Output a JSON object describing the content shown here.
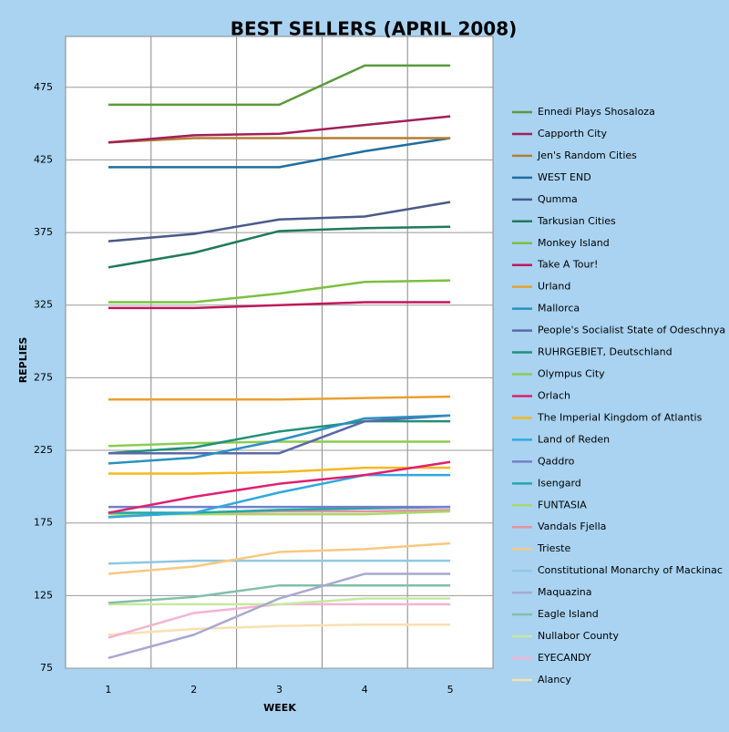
{
  "chart_data": {
    "type": "line",
    "title": "BEST SELLERS (APRIL 2008)",
    "x_label": "WEEK",
    "y_label": "REPLIES",
    "categories": [
      "1",
      "2",
      "3",
      "4",
      "5"
    ],
    "ylim": [
      75,
      510
    ],
    "yticks": [
      75,
      125,
      175,
      225,
      275,
      325,
      375,
      425,
      475
    ],
    "grid": true,
    "series": [
      {
        "name": "Ennedi Plays Shosaloza",
        "color": "#5a9a3a",
        "values": [
          463,
          463,
          463,
          490,
          490
        ]
      },
      {
        "name": "Capporth City",
        "color": "#a0205a",
        "values": [
          437,
          442,
          443,
          449,
          455
        ]
      },
      {
        "name": "Jen's Random Cities",
        "color": "#b57d32",
        "values": [
          437,
          440,
          440,
          440,
          440
        ]
      },
      {
        "name": "WEST END",
        "color": "#1f6e9e",
        "values": [
          420,
          420,
          420,
          431,
          440
        ]
      },
      {
        "name": "Qumma",
        "color": "#4a5a8a",
        "values": [
          369,
          374,
          384,
          386,
          396
        ]
      },
      {
        "name": "Tarkusian Cities",
        "color": "#1f7a5a",
        "values": [
          351,
          361,
          376,
          378,
          379
        ]
      },
      {
        "name": "Monkey Island",
        "color": "#7ac040",
        "values": [
          327,
          327,
          333,
          341,
          342
        ]
      },
      {
        "name": "Take A Tour!",
        "color": "#c0185a",
        "values": [
          323,
          323,
          325,
          327,
          327
        ]
      },
      {
        "name": "Urland",
        "color": "#e8a030",
        "values": [
          260,
          260,
          260,
          261,
          262
        ]
      },
      {
        "name": "Mallorca",
        "color": "#2a90c0",
        "values": [
          216,
          220,
          232,
          247,
          249
        ]
      },
      {
        "name": "People's Socialist State of Odeschnya",
        "color": "#5a68a8",
        "values": [
          223,
          223,
          223,
          245,
          249
        ]
      },
      {
        "name": "RUHRGEBIET, Deutschland",
        "color": "#20907a",
        "values": [
          223,
          227,
          238,
          245,
          245
        ]
      },
      {
        "name": "Olympus City",
        "color": "#8ccc50",
        "values": [
          228,
          230,
          231,
          231,
          231
        ]
      },
      {
        "name": "Orlach",
        "color": "#e0206e",
        "values": [
          182,
          193,
          202,
          208,
          217
        ]
      },
      {
        "name": "The Imperial Kingdom of Atlantis",
        "color": "#f5b820",
        "values": [
          209,
          209,
          210,
          213,
          213
        ]
      },
      {
        "name": "Land of Reden",
        "color": "#30a8e0",
        "values": [
          179,
          182,
          196,
          208,
          208
        ]
      },
      {
        "name": "Qaddro",
        "color": "#7080c8",
        "values": [
          186,
          186,
          186,
          186,
          186
        ]
      },
      {
        "name": "Isengard",
        "color": "#20a8a8",
        "values": [
          182,
          182,
          184,
          185,
          186
        ]
      },
      {
        "name": "FUNTASIA",
        "color": "#a8d868",
        "values": [
          181,
          181,
          181,
          181,
          183
        ]
      },
      {
        "name": "Vandals Fjella",
        "color": "#e890a0",
        "values": [
          179,
          182,
          183,
          183,
          184
        ]
      },
      {
        "name": "Trieste",
        "color": "#f8c880",
        "values": [
          140,
          145,
          155,
          157,
          161
        ]
      },
      {
        "name": "Constitutional Monarchy of Mackinac",
        "color": "#90c8e0",
        "values": [
          147,
          149,
          149,
          149,
          149
        ]
      },
      {
        "name": "Maquazina",
        "color": "#a8a8d0",
        "values": [
          82,
          98,
          123,
          140,
          140
        ]
      },
      {
        "name": "Eagle Island",
        "color": "#80c0a8",
        "values": [
          120,
          124,
          132,
          132,
          132
        ]
      },
      {
        "name": "Nullabor County",
        "color": "#c8e8a0",
        "values": [
          119,
          119,
          119,
          123,
          123
        ]
      },
      {
        "name": "EYECANDY",
        "color": "#f4b4d4",
        "values": [
          96,
          113,
          119,
          119,
          119
        ]
      },
      {
        "name": "Alancy",
        "color": "#f8e0b0",
        "values": [
          98,
          102,
          104,
          105,
          105
        ]
      }
    ]
  }
}
